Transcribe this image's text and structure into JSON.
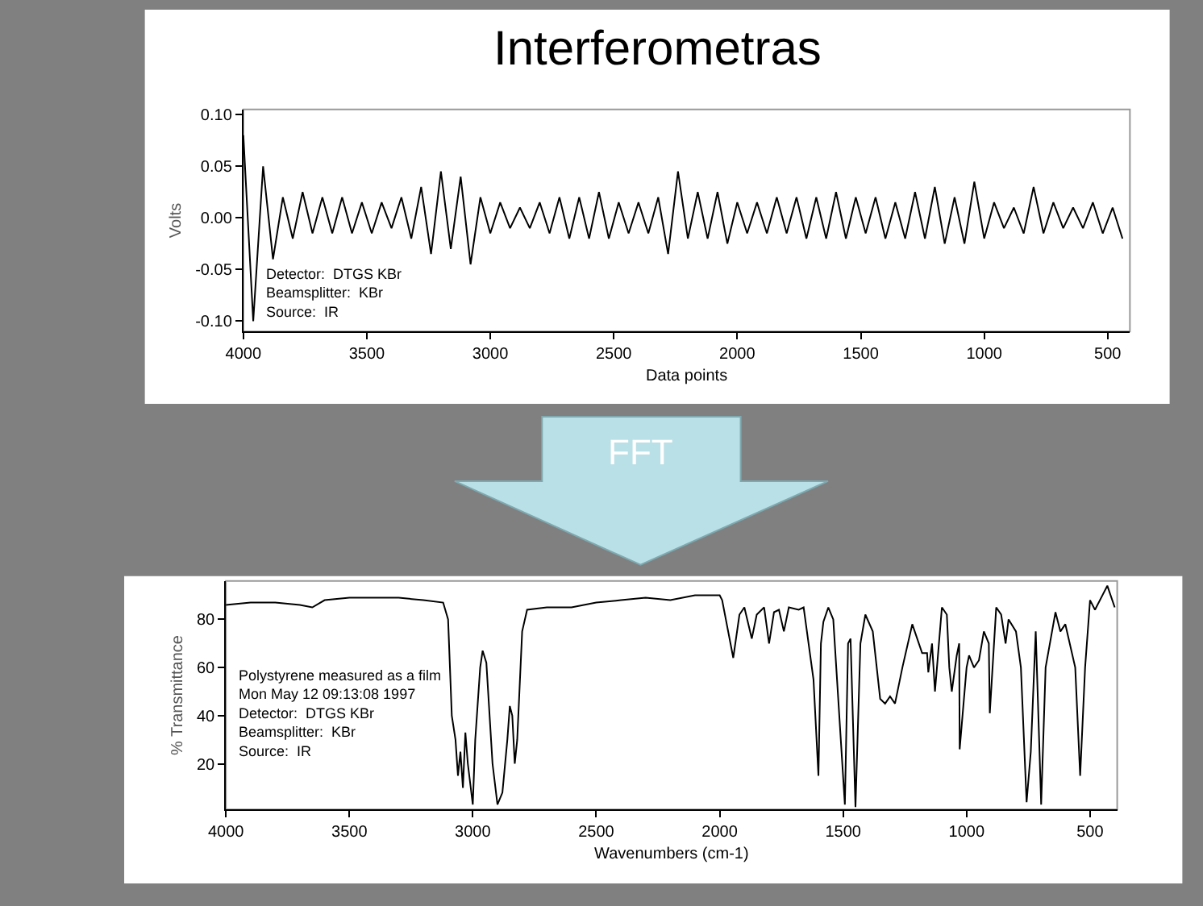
{
  "chart_data": [
    {
      "type": "line",
      "title": "Interferometras",
      "xlabel": "Data points",
      "ylabel": "Volts",
      "color": "#000000",
      "grid": false,
      "xlim": [
        4000,
        410
      ],
      "ylim": [
        -0.11,
        0.105
      ],
      "xticks": [
        4000,
        3500,
        3000,
        2500,
        2000,
        1500,
        1000,
        500
      ],
      "yticks": [
        {
          "value": -0.1,
          "label": "-0.10"
        },
        {
          "value": -0.05,
          "label": "-0.05"
        },
        {
          "value": 0,
          "label": "0.00"
        },
        {
          "value": 0.05,
          "label": "0.05"
        },
        {
          "value": 0.1,
          "label": "0.10"
        }
      ],
      "annotations": [
        "Detector:  DTGS KBr\nBeamsplitter:  KBr\nSource:  IR"
      ],
      "x": [
        4000,
        3960,
        3920,
        3880,
        3840,
        3800,
        3760,
        3720,
        3680,
        3640,
        3600,
        3560,
        3520,
        3480,
        3440,
        3400,
        3360,
        3320,
        3280,
        3240,
        3200,
        3160,
        3120,
        3080,
        3040,
        3000,
        2960,
        2920,
        2880,
        2840,
        2800,
        2760,
        2720,
        2680,
        2640,
        2600,
        2560,
        2520,
        2480,
        2440,
        2400,
        2360,
        2320,
        2280,
        2240,
        2200,
        2160,
        2120,
        2080,
        2040,
        2000,
        1960,
        1920,
        1880,
        1840,
        1800,
        1760,
        1720,
        1680,
        1640,
        1600,
        1560,
        1520,
        1480,
        1440,
        1400,
        1360,
        1320,
        1280,
        1240,
        1200,
        1160,
        1120,
        1080,
        1040,
        1000,
        960,
        920,
        880,
        840,
        800,
        760,
        720,
        680,
        640,
        600,
        560,
        520,
        480,
        440
      ],
      "values": [
        0.08,
        -0.1,
        0.05,
        -0.04,
        0.02,
        -0.02,
        0.025,
        -0.015,
        0.02,
        -0.015,
        0.02,
        -0.015,
        0.015,
        -0.015,
        0.015,
        -0.01,
        0.02,
        -0.02,
        0.03,
        -0.035,
        0.045,
        -0.03,
        0.04,
        -0.045,
        0.02,
        -0.015,
        0.015,
        -0.01,
        0.01,
        -0.01,
        0.015,
        -0.015,
        0.02,
        -0.02,
        0.02,
        -0.02,
        0.025,
        -0.02,
        0.015,
        -0.015,
        0.015,
        -0.015,
        0.02,
        -0.035,
        0.045,
        -0.02,
        0.025,
        -0.02,
        0.025,
        -0.025,
        0.015,
        -0.015,
        0.015,
        -0.015,
        0.02,
        -0.015,
        0.02,
        -0.02,
        0.02,
        -0.02,
        0.025,
        -0.02,
        0.02,
        -0.015,
        0.02,
        -0.02,
        0.015,
        -0.02,
        0.025,
        -0.02,
        0.03,
        -0.025,
        0.02,
        -0.025,
        0.035,
        -0.02,
        0.015,
        -0.01,
        0.01,
        -0.015,
        0.03,
        -0.015,
        0.015,
        -0.01,
        0.01,
        -0.01,
        0.015,
        -0.015,
        0.01,
        -0.02
      ]
    },
    {
      "type": "line",
      "title": "FFT",
      "xlabel": "Wavenumbers (cm-1)",
      "ylabel": "% Transmittance",
      "color": "#000000",
      "grid": false,
      "xlim": [
        4000,
        390
      ],
      "ylim": [
        1,
        96
      ],
      "xticks": [
        4000,
        3500,
        3000,
        2500,
        2000,
        1500,
        1000,
        500
      ],
      "yticks": [
        20,
        40,
        60,
        80
      ],
      "annotations": [
        "Polystyrene measured as a film\nMon May 12 09:13:08 1997\nDetector:  DTGS KBr\nBeamsplitter:  KBr\nSource:  IR"
      ],
      "x": [
        4000,
        3900,
        3800,
        3700,
        3650,
        3600,
        3500,
        3400,
        3300,
        3200,
        3120,
        3100,
        3085,
        3070,
        3060,
        3050,
        3040,
        3030,
        3020,
        3000,
        2990,
        2970,
        2960,
        2945,
        2920,
        2900,
        2880,
        2860,
        2850,
        2840,
        2830,
        2820,
        2800,
        2780,
        2700,
        2600,
        2500,
        2400,
        2300,
        2200,
        2100,
        2000,
        1990,
        1945,
        1920,
        1900,
        1870,
        1850,
        1820,
        1800,
        1780,
        1760,
        1740,
        1720,
        1680,
        1660,
        1620,
        1600,
        1590,
        1580,
        1560,
        1540,
        1493,
        1480,
        1470,
        1450,
        1430,
        1410,
        1380,
        1350,
        1330,
        1310,
        1290,
        1260,
        1220,
        1180,
        1160,
        1155,
        1140,
        1128,
        1100,
        1080,
        1070,
        1060,
        1040,
        1030,
        1028,
        1000,
        990,
        970,
        950,
        930,
        910,
        906,
        880,
        860,
        842,
        830,
        800,
        780,
        757,
        740,
        720,
        700,
        698,
        680,
        640,
        620,
        600,
        560,
        540,
        520,
        500,
        480,
        450,
        430,
        400
      ],
      "values": [
        86,
        87,
        87,
        86,
        85,
        88,
        89,
        89,
        89,
        88,
        87,
        80,
        40,
        30,
        15,
        25,
        10,
        33,
        20,
        3,
        30,
        60,
        67,
        62,
        20,
        3,
        8,
        30,
        44,
        40,
        20,
        30,
        75,
        84,
        85,
        85,
        87,
        88,
        89,
        88,
        90,
        90,
        88,
        64,
        82,
        85,
        72,
        82,
        85,
        70,
        83,
        84,
        75,
        85,
        84,
        85,
        55,
        15,
        70,
        79,
        85,
        80,
        3,
        70,
        72,
        2,
        70,
        82,
        75,
        47,
        45,
        48,
        45,
        60,
        78,
        66,
        66,
        58,
        70,
        50,
        85,
        82,
        60,
        50,
        65,
        70,
        26,
        60,
        65,
        60,
        63,
        75,
        70,
        41,
        85,
        82,
        70,
        80,
        75,
        60,
        4,
        25,
        75,
        10,
        3,
        60,
        83,
        75,
        78,
        60,
        15,
        60,
        88,
        84,
        90,
        94,
        85
      ]
    }
  ]
}
